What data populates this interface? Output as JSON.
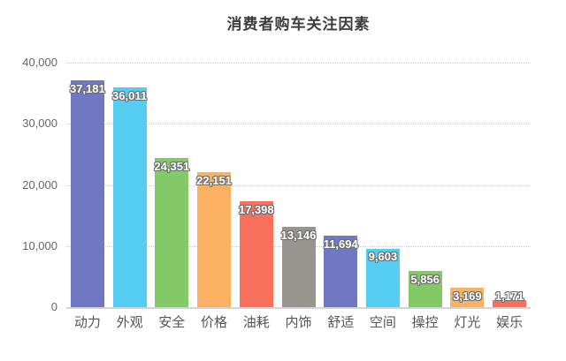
{
  "page": {
    "title": "消费者购车关注因素"
  },
  "chart_data": {
    "type": "bar",
    "title": "消费者购车关注因素",
    "categories": [
      "动力",
      "外观",
      "安全",
      "价格",
      "油耗",
      "内饰",
      "舒适",
      "空间",
      "操控",
      "灯光",
      "娱乐"
    ],
    "values": [
      37181,
      36011,
      24351,
      22151,
      17398,
      13146,
      11694,
      9603,
      5856,
      3169,
      1171
    ],
    "value_labels": [
      "37,181",
      "36,011",
      "24,351",
      "22,151",
      "17,398",
      "13,146",
      "11,694",
      "9,603",
      "5,856",
      "3,169",
      "1,171"
    ],
    "bar_colors": [
      "#7178c3",
      "#55cdf2",
      "#83c968",
      "#fbb161",
      "#f8705b",
      "#989591",
      "#7178c3",
      "#55cdf2",
      "#83c968",
      "#fbb161",
      "#f8705b"
    ],
    "xlabel": "",
    "ylabel": "",
    "ylim": [
      0,
      40000
    ],
    "yticks": [
      {
        "value": 0,
        "label": "0"
      },
      {
        "value": 10000,
        "label": "10,000"
      },
      {
        "value": 20000,
        "label": "20,000"
      },
      {
        "value": 30000,
        "label": "30,000"
      },
      {
        "value": 40000,
        "label": "40,000"
      }
    ],
    "grid": "horizontal-dotted",
    "legend": "none",
    "style": {
      "title_color": "#3d3d3d",
      "axis_label_color": "#666666",
      "category_label_color": "#555555",
      "gridline_color": "#cccccc",
      "baseline_color": "#d4d4d4",
      "value_label_color": "#ffffff",
      "value_label_outline": "#6e6e6e",
      "background": "#ffffff"
    }
  }
}
